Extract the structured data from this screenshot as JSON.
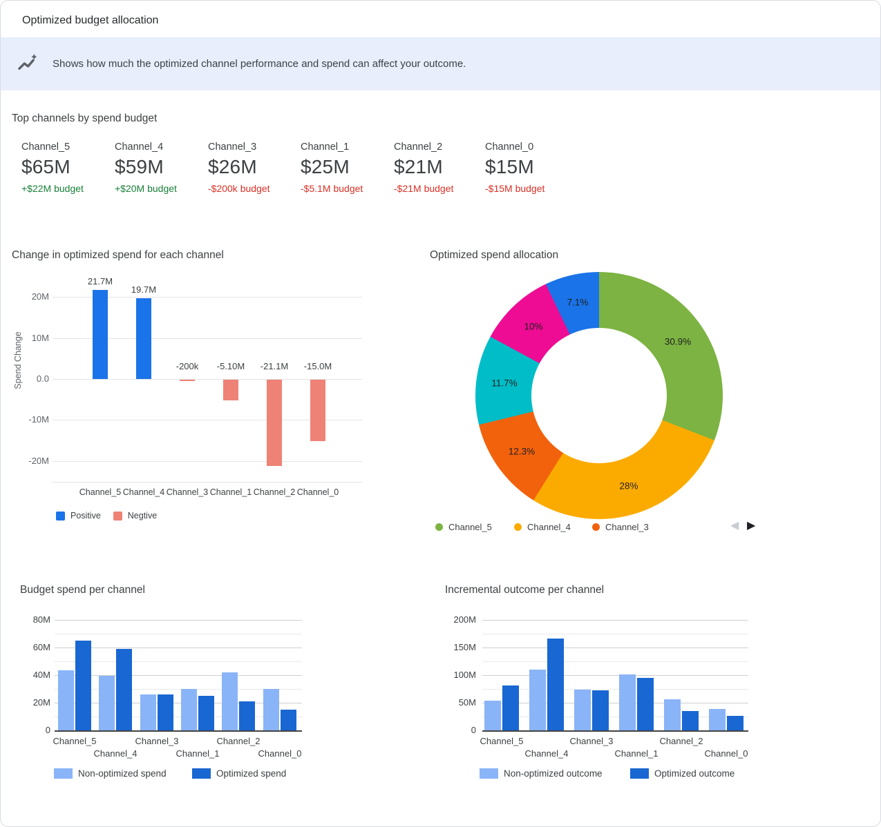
{
  "window": {
    "title": "Optimized budget allocation"
  },
  "banner": {
    "icon": "trending-sparkle-icon",
    "text": "Shows how much the optimized channel performance and spend can affect your outcome.",
    "bg_color": "#e8eefb"
  },
  "top_channels": {
    "heading": "Top channels by spend budget",
    "items": [
      {
        "name": "Channel_5",
        "spend": "$65M",
        "delta": "+$22M budget",
        "direction": "up"
      },
      {
        "name": "Channel_4",
        "spend": "$59M",
        "delta": "+$20M budget",
        "direction": "up"
      },
      {
        "name": "Channel_3",
        "spend": "$26M",
        "delta": "-$200k budget",
        "direction": "down"
      },
      {
        "name": "Channel_1",
        "spend": "$25M",
        "delta": "-$5.1M budget",
        "direction": "down"
      },
      {
        "name": "Channel_2",
        "spend": "$21M",
        "delta": "-$21M budget",
        "direction": "down"
      },
      {
        "name": "Channel_0",
        "spend": "$15M",
        "delta": "-$15M budget",
        "direction": "down"
      }
    ]
  },
  "colors": {
    "accent_blue": "#1a73e8",
    "negative_bar": "#ee8276",
    "light_blue_bar": "#8ab4f8",
    "dark_blue_bar": "#1967d2",
    "positive_text": "#188038",
    "negative_text": "#d93025"
  },
  "chart_data": [
    {
      "type": "bar",
      "title": "Change in optimized spend for each channel",
      "ylabel": "Spend Change",
      "categories": [
        "Channel_5",
        "Channel_4",
        "Channel_3",
        "Channel_1",
        "Channel_2",
        "Channel_0"
      ],
      "values": [
        21.7,
        19.7,
        -0.2,
        -5.1,
        -21.1,
        -15.0
      ],
      "bar_labels": [
        "21.7M",
        "19.7M",
        "-200k",
        "-5.10M",
        "-21.1M",
        "-15.0M"
      ],
      "yticks": [
        {
          "value": 20,
          "label": "20M"
        },
        {
          "value": 10,
          "label": "10M"
        },
        {
          "value": 0,
          "label": "0.0"
        },
        {
          "value": -10,
          "label": "-10M"
        },
        {
          "value": -20,
          "label": "-20M"
        }
      ],
      "ylim": [
        -25,
        25
      ],
      "positive_color": "#1a73e8",
      "negative_color": "#ee8276",
      "legend": [
        {
          "label": "Positive",
          "color": "#1a73e8"
        },
        {
          "label": "Negtive",
          "color": "#ee8276"
        }
      ]
    },
    {
      "type": "pie",
      "title": "Optimized spend allocation",
      "donut": true,
      "slices": [
        {
          "label": "Channel_5",
          "pct": 30.9,
          "pct_label": "30.9%",
          "color": "#7cb342"
        },
        {
          "label": "Channel_4",
          "pct": 28.0,
          "pct_label": "28%",
          "color": "#fbab00"
        },
        {
          "label": "Channel_3",
          "pct": 12.3,
          "pct_label": "12.3%",
          "color": "#f2620d"
        },
        {
          "label": "Channel_1",
          "pct": 11.7,
          "pct_label": "11.7%",
          "color": "#00bdc7"
        },
        {
          "label": "Channel_2",
          "pct": 10.0,
          "pct_label": "10%",
          "color": "#ed0c93"
        },
        {
          "label": "Channel_0",
          "pct": 7.1,
          "pct_label": "7.1%",
          "color": "#1a73e8"
        }
      ],
      "legend": [
        {
          "label": "Channel_5",
          "color": "#7cb342"
        },
        {
          "label": "Channel_4",
          "color": "#fbab00"
        },
        {
          "label": "Channel_3",
          "color": "#f2620d"
        }
      ],
      "pagination": {
        "prev_icon": "◀",
        "next_icon": "▶"
      }
    },
    {
      "type": "bar",
      "title": "Budget spend per channel",
      "categories": [
        "Channel_5",
        "Channel_4",
        "Channel_3",
        "Channel_1",
        "Channel_2",
        "Channel_0"
      ],
      "series": [
        {
          "name": "Non-optimized spend",
          "color": "#8ab4f8",
          "values": [
            43.3,
            39.3,
            26.2,
            30.1,
            42.1,
            30.0
          ]
        },
        {
          "name": "Optimized spend",
          "color": "#1967d2",
          "values": [
            65,
            59,
            26,
            25,
            21,
            14.9
          ]
        }
      ],
      "yticks": [
        {
          "value": 0,
          "label": "0"
        },
        {
          "value": 20,
          "label": "20M"
        },
        {
          "value": 40,
          "label": "40M"
        },
        {
          "value": 60,
          "label": "60M"
        },
        {
          "value": 80,
          "label": "80M"
        }
      ],
      "minor_step": 10,
      "ylim": [
        0,
        80
      ]
    },
    {
      "type": "bar",
      "title": "Incremental outcome per channel",
      "categories": [
        "Channel_5",
        "Channel_4",
        "Channel_3",
        "Channel_1",
        "Channel_2",
        "Channel_0"
      ],
      "series": [
        {
          "name": "Non-optimized outcome",
          "color": "#8ab4f8",
          "values": [
            54,
            110,
            74,
            101,
            56,
            39
          ]
        },
        {
          "name": "Optimized outcome",
          "color": "#1967d2",
          "values": [
            81,
            166,
            73,
            95,
            35,
            26
          ]
        }
      ],
      "yticks": [
        {
          "value": 0,
          "label": "0"
        },
        {
          "value": 50,
          "label": "50M"
        },
        {
          "value": 100,
          "label": "100M"
        },
        {
          "value": 150,
          "label": "150M"
        },
        {
          "value": 200,
          "label": "200M"
        }
      ],
      "minor_step": 25,
      "ylim": [
        0,
        200
      ]
    }
  ]
}
